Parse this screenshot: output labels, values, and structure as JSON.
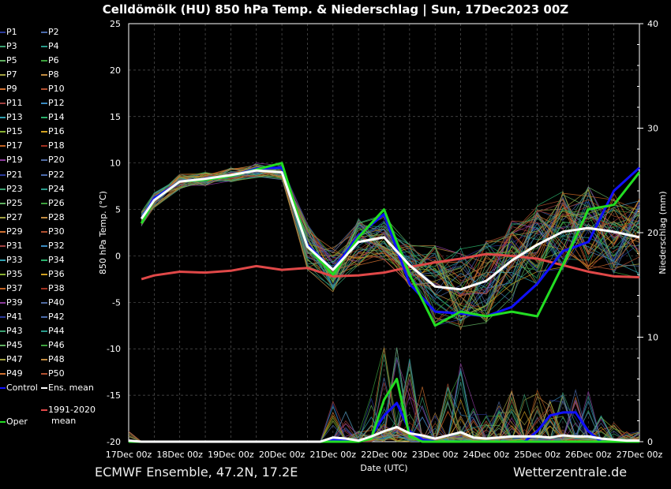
{
  "title": "Celldömölk  (HU)  850 hPa Temp. & Niederschlag | Sun, 17Dec2023 00Z",
  "footer": {
    "left": "ECMWF Ensemble, 47.2N, 17.2E",
    "right": "Wetterzentrale.de"
  },
  "legend": {
    "members": [
      "P1",
      "P2",
      "P3",
      "P4",
      "P5",
      "P6",
      "P7",
      "P8",
      "P9",
      "P10",
      "P11",
      "P12",
      "P13",
      "P14",
      "P15",
      "P16",
      "P17",
      "P18",
      "P19",
      "P20",
      "P21",
      "P22",
      "P23",
      "P24",
      "P25",
      "P26",
      "P27",
      "P28",
      "P29",
      "P30",
      "P31",
      "P32",
      "P33",
      "P34",
      "P35",
      "P36",
      "P37",
      "P38",
      "P39",
      "P40",
      "P41",
      "P42",
      "P43",
      "P44",
      "P45",
      "P46",
      "P47",
      "P48",
      "P49",
      "P50"
    ],
    "control": "Control",
    "ens_mean": "Ens. mean",
    "clim_line1": "1991-2020",
    "clim_line2": "mean",
    "oper": "Oper"
  },
  "colors": {
    "control": "#1010ff",
    "ens_mean": "#ffffff",
    "oper": "#22dd22",
    "clim": "#e04848",
    "axis": "#ffffff",
    "grid": "#555555",
    "member_palette": [
      "#2a3a9a",
      "#4a6aaa",
      "#3aa070",
      "#2a9a8a",
      "#60b060",
      "#3ca03c",
      "#a0a040",
      "#c08a40",
      "#d07030",
      "#b05030",
      "#a04040",
      "#3a8ac0",
      "#30a0b0",
      "#2ab06a",
      "#88b030",
      "#d0a020",
      "#c06020",
      "#a03020",
      "#8a3a9a",
      "#506aa0"
    ]
  },
  "chart_data": {
    "type": "line",
    "title": "Celldömölk  (HU)  850 hPa Temp. & Niederschlag | Sun, 17Dec2023 00Z",
    "xlabel": "Date (UTC)",
    "ylabel": "850 hPa Temp. (°C)",
    "y2label": "Niederschlag (mm)",
    "ylim": [
      -20,
      25
    ],
    "y2lim": [
      0,
      40
    ],
    "yticks": [
      25,
      20,
      15,
      10,
      5,
      0,
      -5,
      -10,
      -15,
      -20
    ],
    "y2ticks": [
      40,
      30,
      20,
      10,
      0
    ],
    "xticks": [
      "17Dec 00z",
      "18Dec 00z",
      "19Dec 00z",
      "20Dec 00z",
      "21Dec 00z",
      "22Dec 00z",
      "23Dec 00z",
      "24Dec 00z",
      "25Dec 00z",
      "26Dec 00z",
      "27Dec 00z"
    ],
    "grid": true,
    "legend_position": "left",
    "temp_step_hours": 12,
    "temperature": {
      "ens_mean": [
        4,
        6,
        8,
        8.3,
        8.7,
        9.2,
        9,
        1,
        -1.5,
        1.5,
        2,
        -1,
        -3.3,
        -3.6,
        -2.7,
        -0.5,
        1.2,
        2.6,
        3,
        2.6,
        2
      ],
      "oper": [
        3.5,
        6,
        8,
        8.2,
        8.6,
        9.3,
        10,
        1,
        -2,
        2,
        5,
        -2,
        -7.5,
        -6,
        -6.5,
        -6,
        -6.5,
        -1,
        5,
        5.5,
        9
      ],
      "control": [
        4,
        6.2,
        8,
        8.3,
        8.6,
        9.4,
        9.5,
        1.2,
        -1.5,
        2.2,
        4.5,
        -3,
        -6,
        -6.2,
        -6.5,
        -5.5,
        -3,
        0.5,
        1.5,
        7,
        9.5
      ],
      "clim_mean": [
        -2.5,
        -2.1,
        -1.7,
        -1.8,
        -1.6,
        -1.1,
        -1.5,
        -1.3,
        -2.2,
        -2.1,
        -1.8,
        -1.2,
        -0.7,
        -0.3,
        0.2,
        0,
        -0.3,
        -1,
        -1.7,
        -2.2,
        -2.3
      ]
    },
    "precip_step_hours": 6,
    "precipitation": {
      "oper": [
        0,
        0,
        0,
        0,
        0,
        0,
        0,
        0,
        0,
        0,
        0,
        0,
        0,
        0,
        0,
        0,
        0,
        0,
        0,
        0.3,
        4,
        6,
        0.5,
        0,
        0,
        0,
        0,
        0,
        0,
        0,
        0,
        0,
        0,
        0,
        0,
        0,
        0,
        0,
        0,
        0,
        0
      ],
      "control": [
        0,
        0,
        0,
        0,
        0,
        0,
        0,
        0,
        0,
        0,
        0,
        0,
        0,
        0,
        0,
        0,
        0.2,
        0.1,
        0,
        0.5,
        2.5,
        3.7,
        1,
        0.2,
        0,
        0,
        0,
        0,
        0,
        0,
        0,
        0,
        1,
        2.5,
        2.8,
        2.8,
        1,
        0,
        0,
        0,
        0
      ],
      "ens_mean": [
        0.1,
        0,
        0,
        0,
        0,
        0,
        0,
        0,
        0,
        0,
        0,
        0,
        0,
        0,
        0,
        0,
        0.4,
        0.3,
        0.1,
        0.5,
        1,
        1.4,
        0.8,
        0.6,
        0.3,
        0.6,
        0.9,
        0.4,
        0.3,
        0.4,
        0.5,
        0.5,
        0.5,
        0.4,
        0.6,
        0.5,
        0.5,
        0.3,
        0.2,
        0.1,
        0.1
      ]
    }
  }
}
